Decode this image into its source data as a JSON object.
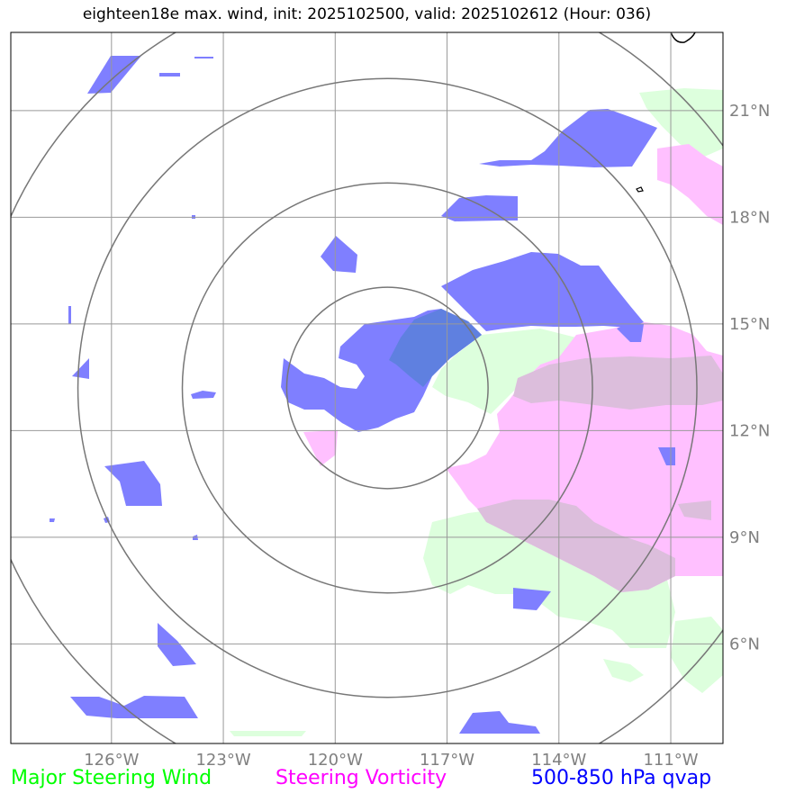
{
  "title": "eighteen18e max. wind, init: 2025102500, valid: 2025102612 (Hour: 036)",
  "map": {
    "lon_range": [
      -128.7,
      -109.6
    ],
    "lat_range": [
      3.2,
      23.2
    ],
    "lon_ticks": [
      {
        "value": -126,
        "label": "126°W"
      },
      {
        "value": -123,
        "label": "123°W"
      },
      {
        "value": -120,
        "label": "120°W"
      },
      {
        "value": -117,
        "label": "117°W"
      },
      {
        "value": -114,
        "label": "114°W"
      },
      {
        "value": -111,
        "label": "111°W"
      }
    ],
    "lat_ticks": [
      {
        "value": 6,
        "label": "6°N"
      },
      {
        "value": 9,
        "label": "9°N"
      },
      {
        "value": 12,
        "label": "12°N"
      },
      {
        "value": 15,
        "label": "15°N"
      },
      {
        "value": 18,
        "label": "18°N"
      },
      {
        "value": 21,
        "label": "21°N"
      }
    ],
    "storm_center": {
      "lon": -118.6,
      "lat": 13.2
    },
    "range_rings_radius_deg": [
      2.7,
      5.5,
      8.3,
      11.1
    ],
    "colors": {
      "wind": "#ddffdd",
      "vorticity": "#ffc0ff",
      "qvap": "#7f7fff",
      "overlap_wind_qvap": "#5f80e0",
      "overlap_vort_wind": "#dcbedc",
      "grid": "#999999",
      "rings": "#777777",
      "tick_labels": "#808080"
    }
  },
  "legend": {
    "wind": {
      "label": "Major Steering Wind",
      "color": "#00ff00"
    },
    "vorticity": {
      "label": "Steering Vorticity",
      "color": "#ff00ff"
    },
    "qvap": {
      "label": "500-850 hPa qvap",
      "color": "#0000ff"
    }
  }
}
